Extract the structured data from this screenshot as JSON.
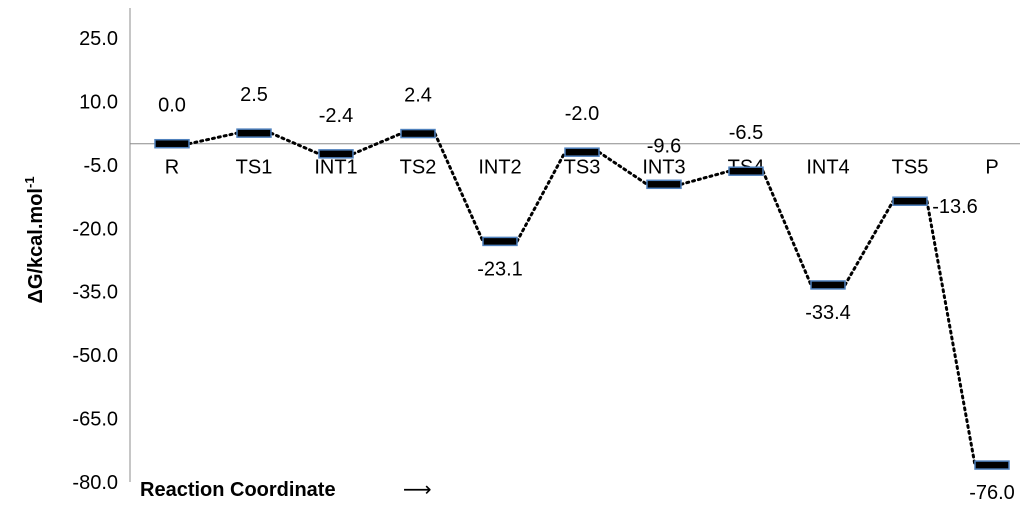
{
  "chart_data": {
    "type": "line",
    "categories": [
      "R",
      "TS1",
      "INT1",
      "TS2",
      "INT2",
      "TS3",
      "INT3",
      "TS4",
      "INT4",
      "TS5",
      "P"
    ],
    "values": [
      0.0,
      2.5,
      -2.4,
      2.4,
      -23.1,
      -2.0,
      -9.6,
      -6.5,
      -33.4,
      -13.6,
      -76.0
    ],
    "value_labels": [
      "0.0",
      "2.5",
      "-2.4",
      "2.4",
      "-23.1",
      "-2.0",
      "-9.6",
      "-6.5",
      "-33.4",
      "-13.6",
      "-76.0"
    ],
    "label_position": [
      "above",
      "above",
      "above",
      "above",
      "below",
      "above",
      "above",
      "above",
      "below",
      "right",
      "below"
    ],
    "yticks": [
      "25.0",
      "10.0",
      "-5.0",
      "-20.0",
      "-35.0",
      "-50.0",
      "-65.0",
      "-80.0"
    ],
    "ylim": [
      -80,
      25
    ],
    "ylabel": "ΔG/kcal.mol",
    "ylabel_superscript": "-1",
    "xlabel": "Reaction Coordinate",
    "xlabel_arrow": "⟶",
    "grid": false,
    "legend": "none",
    "line_style": "dotted",
    "colors": {
      "line": "#000000",
      "level_fill": "#000000",
      "level_border": "#4f81bd",
      "axis": "#8c8c8c"
    }
  }
}
